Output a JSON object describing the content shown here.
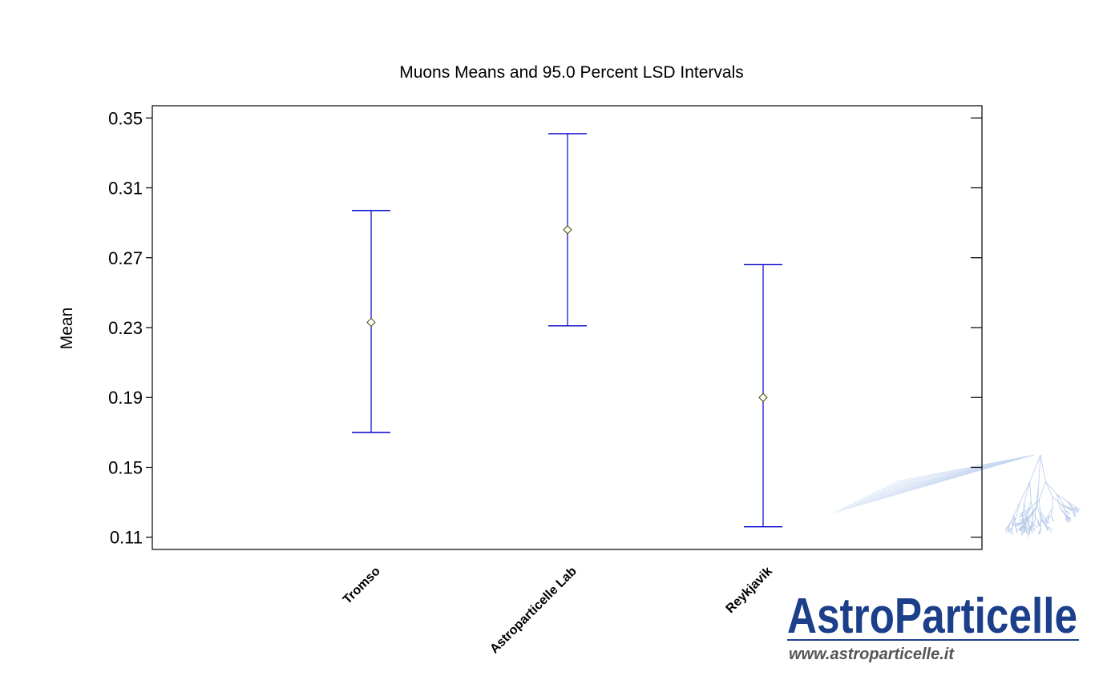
{
  "chart_data": {
    "type": "error-bar",
    "title": "Muons Means and 95.0 Percent LSD Intervals",
    "xlabel": "",
    "ylabel": "Mean",
    "ylim": [
      0.103,
      0.357
    ],
    "yticks": [
      0.35,
      0.31,
      0.27,
      0.23,
      0.19,
      0.15,
      0.11
    ],
    "ytick_labels": [
      "0.35",
      "0.31",
      "0.27",
      "0.23",
      "0.19",
      "0.15",
      "0.11"
    ],
    "categories": [
      "Tromso",
      "Astroparticelle Lab",
      "Reykjavik"
    ],
    "means": [
      0.233,
      0.286,
      0.19
    ],
    "lower": [
      0.17,
      0.231,
      0.116
    ],
    "upper": [
      0.297,
      0.341,
      0.266
    ],
    "interval_color": "#0000cc",
    "mean_marker": "diamond",
    "mean_marker_color": "#444400",
    "grid": false
  },
  "watermark": {
    "brand_text": "AstroParticelle",
    "url_text": "www.astroparticelle.it",
    "brand_color": "#1c3f8c"
  }
}
